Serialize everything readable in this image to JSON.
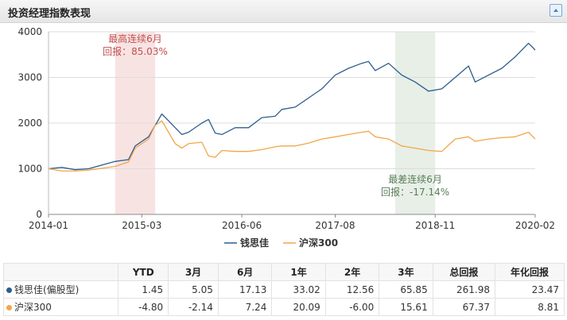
{
  "panel": {
    "title": "投资经理指数表现"
  },
  "chart_data": {
    "type": "line",
    "ylim": [
      0,
      4000
    ],
    "yticks": [
      0,
      1000,
      2000,
      3000,
      4000
    ],
    "xlim": [
      "2014-01",
      "2020-02"
    ],
    "xticks": [
      "2014-01",
      "2015-03",
      "2016-06",
      "2017-08",
      "2018-11",
      "2020-02"
    ],
    "grid": true,
    "legend_position": "bottom",
    "colors": {
      "qian": "#2c5d8f",
      "hs300": "#f2a64a",
      "best_band": "#f6d9d9",
      "worst_band": "#dfe9df",
      "best_text": "#c0504d",
      "worst_text": "#5a7d5a"
    },
    "series": [
      {
        "name": "钱思佳",
        "x": [
          "2014-01",
          "2014-03",
          "2014-05",
          "2014-07",
          "2014-09",
          "2014-11",
          "2015-01",
          "2015-02",
          "2015-04",
          "2015-05",
          "2015-06",
          "2015-07",
          "2015-08",
          "2015-09",
          "2015-10",
          "2015-12",
          "2016-01",
          "2016-02",
          "2016-03",
          "2016-05",
          "2016-07",
          "2016-09",
          "2016-11",
          "2016-12",
          "2017-02",
          "2017-04",
          "2017-06",
          "2017-08",
          "2017-10",
          "2017-12",
          "2018-01",
          "2018-02",
          "2018-04",
          "2018-06",
          "2018-08",
          "2018-10",
          "2018-12",
          "2019-02",
          "2019-04",
          "2019-05",
          "2019-07",
          "2019-09",
          "2019-11",
          "2020-01",
          "2020-02"
        ],
        "values": [
          1000,
          1030,
          980,
          1000,
          1080,
          1160,
          1200,
          1500,
          1700,
          1950,
          2200,
          2050,
          1900,
          1750,
          1800,
          2000,
          2080,
          1780,
          1750,
          1900,
          1900,
          2120,
          2150,
          2300,
          2350,
          2550,
          2750,
          3050,
          3200,
          3310,
          3350,
          3150,
          3310,
          3050,
          2900,
          2700,
          2750,
          3000,
          3250,
          2900,
          3050,
          3200,
          3450,
          3750,
          3600
        ]
      },
      {
        "name": "沪深300",
        "x": [
          "2014-01",
          "2014-03",
          "2014-05",
          "2014-07",
          "2014-09",
          "2014-11",
          "2015-01",
          "2015-02",
          "2015-04",
          "2015-05",
          "2015-06",
          "2015-07",
          "2015-08",
          "2015-09",
          "2015-10",
          "2015-12",
          "2016-01",
          "2016-02",
          "2016-03",
          "2016-05",
          "2016-07",
          "2016-09",
          "2016-11",
          "2016-12",
          "2017-02",
          "2017-04",
          "2017-06",
          "2017-08",
          "2017-10",
          "2017-12",
          "2018-01",
          "2018-02",
          "2018-04",
          "2018-06",
          "2018-08",
          "2018-10",
          "2018-12",
          "2019-02",
          "2019-04",
          "2019-05",
          "2019-07",
          "2019-09",
          "2019-11",
          "2020-01",
          "2020-02"
        ],
        "values": [
          1000,
          950,
          950,
          970,
          1010,
          1050,
          1150,
          1450,
          1650,
          1950,
          2050,
          1800,
          1550,
          1450,
          1550,
          1580,
          1280,
          1250,
          1400,
          1380,
          1380,
          1420,
          1480,
          1500,
          1500,
          1560,
          1650,
          1700,
          1750,
          1800,
          1820,
          1700,
          1650,
          1500,
          1450,
          1400,
          1380,
          1650,
          1700,
          1600,
          1650,
          1680,
          1700,
          1800,
          1650
        ]
      }
    ],
    "bands": [
      {
        "from": "2014-11",
        "to": "2015-05",
        "label_lines": [
          "最高连续6月",
          "回报：85.03%"
        ]
      },
      {
        "from": "2018-05",
        "to": "2018-11",
        "label_lines": [
          "最差连续6月",
          "回报：-17.14%"
        ]
      }
    ]
  },
  "table": {
    "columns": [
      "YTD",
      "3月",
      "6月",
      "1年",
      "2年",
      "3年",
      "总回报",
      "年化回报"
    ],
    "rows": [
      {
        "name": "钱思佳(偏股型)",
        "color": "#2c5d8f",
        "values": [
          "1.45",
          "5.05",
          "17.13",
          "33.02",
          "12.56",
          "65.85",
          "261.98",
          "23.47"
        ]
      },
      {
        "name": "沪深300",
        "color": "#f2a64a",
        "values": [
          "-4.80",
          "-2.14",
          "7.24",
          "20.09",
          "-6.00",
          "15.61",
          "67.37",
          "8.81"
        ]
      }
    ]
  }
}
